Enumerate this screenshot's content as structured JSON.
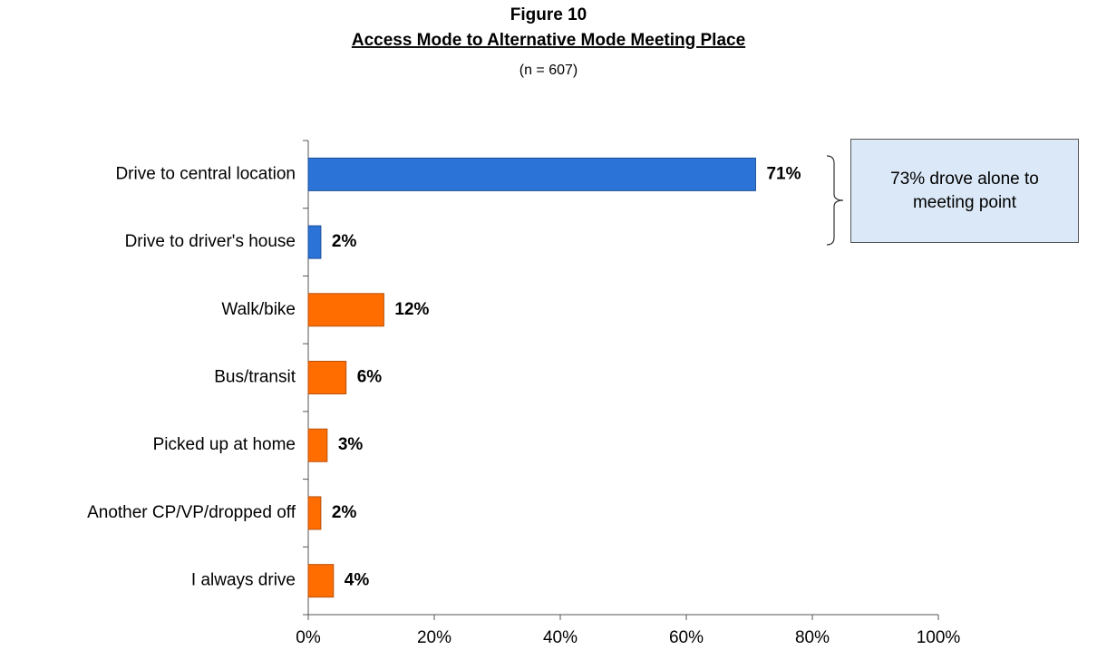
{
  "chart_data": {
    "type": "bar",
    "orientation": "horizontal",
    "title": "Figure 10",
    "subtitle": "Access Mode to Alternative Mode Meeting Place",
    "note": "(n = 607)",
    "annotation": "73% drove alone to meeting point",
    "categories": [
      "Drive to central location",
      "Drive to driver's house",
      "Walk/bike",
      "Bus/transit",
      "Picked up at home",
      "Another CP/VP/dropped off",
      "I always drive"
    ],
    "values": [
      71,
      2,
      12,
      6,
      3,
      2,
      4
    ],
    "value_labels": [
      "71%",
      "2%",
      "12%",
      "6%",
      "3%",
      "2%",
      "4%"
    ],
    "colors": [
      "#2b73d6",
      "#2b73d6",
      "#ff6d00",
      "#ff6d00",
      "#ff6d00",
      "#ff6d00",
      "#ff6d00"
    ],
    "xlim": [
      0,
      100
    ],
    "xticks": [
      {
        "value": 0,
        "label": "0%"
      },
      {
        "value": 20,
        "label": "20%"
      },
      {
        "value": 40,
        "label": "40%"
      },
      {
        "value": 60,
        "label": "60%"
      },
      {
        "value": 80,
        "label": "80%"
      },
      {
        "value": 100,
        "label": "100%"
      }
    ],
    "grid": false
  }
}
